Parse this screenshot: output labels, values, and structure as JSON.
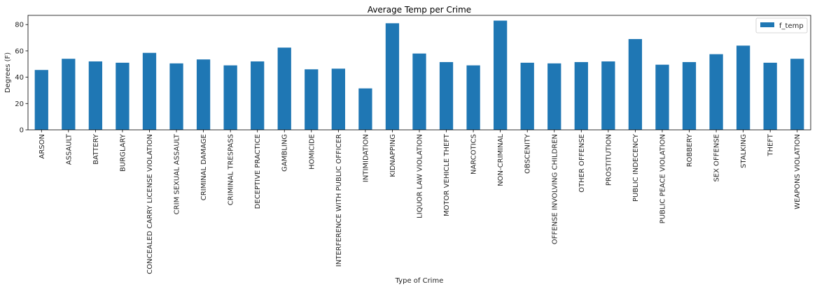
{
  "chart_data": {
    "type": "bar",
    "title": "Average Temp per Crime",
    "xlabel": "Type of Crime",
    "ylabel": "Degrees (F)",
    "ylim": [
      0,
      87
    ],
    "yticks": [
      0,
      20,
      40,
      60,
      80
    ],
    "grid": false,
    "legend_position": "top-right",
    "categories": [
      "ARSON",
      "ASSAULT",
      "BATTERY",
      "BURGLARY",
      "CONCEALED CARRY LICENSE VIOLATION",
      "CRIM SEXUAL ASSAULT",
      "CRIMINAL DAMAGE",
      "CRIMINAL TRESPASS",
      "DECEPTIVE PRACTICE",
      "GAMBLING",
      "HOMICIDE",
      "INTERFERENCE WITH PUBLIC OFFICER",
      "INTIMIDATION",
      "KIDNAPPING",
      "LIQUOR LAW VIOLATION",
      "MOTOR VEHICLE THEFT",
      "NARCOTICS",
      "NON-CRIMINAL",
      "OBSCENITY",
      "OFFENSE INVOLVING CHILDREN",
      "OTHER OFFENSE",
      "PROSTITUTION",
      "PUBLIC INDECENCY",
      "PUBLIC PEACE VIOLATION",
      "ROBBERY",
      "SEX OFFENSE",
      "STALKING",
      "THEFT",
      "WEAPONS VIOLATION"
    ],
    "series": [
      {
        "name": "f_temp",
        "color": "#1f77b4",
        "values": [
          45.5,
          54,
          52,
          51,
          58.5,
          50.5,
          53.5,
          49,
          52,
          62.5,
          46,
          46.5,
          31.5,
          81,
          58,
          51.5,
          49,
          83,
          51,
          50.5,
          51.5,
          52,
          69,
          49.5,
          51.5,
          57.5,
          64,
          51,
          54
        ]
      }
    ]
  }
}
